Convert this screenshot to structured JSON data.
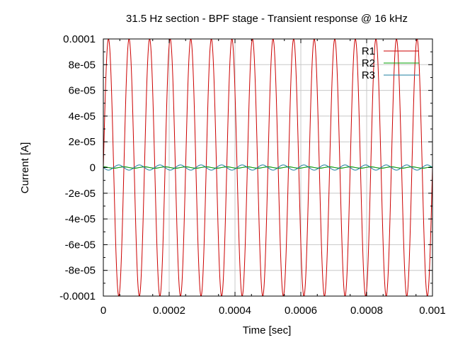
{
  "chart_data": {
    "type": "line",
    "title": "31.5 Hz section - BPF stage - Transient response @ 16 kHz",
    "xlabel": "Time [sec]",
    "ylabel": "Current [A]",
    "xlim": [
      0,
      0.001
    ],
    "ylim": [
      -0.0001,
      0.0001
    ],
    "x_ticks": [
      "0",
      "0.0002",
      "0.0004",
      "0.0006",
      "0.0008",
      "0.001"
    ],
    "y_ticks": [
      "0.0001",
      "8e-05",
      "6e-05",
      "4e-05",
      "2e-05",
      "0",
      "-2e-05",
      "-4e-05",
      "-6e-05",
      "-8e-05",
      "-0.0001"
    ],
    "grid": true,
    "legend_position": "top-right",
    "frequency_hz": 16000,
    "series": [
      {
        "name": "R1",
        "color": "#cc0000",
        "amplitude": 0.0001,
        "phase_deg": 0
      },
      {
        "name": "R2",
        "color": "#00a000",
        "amplitude": 6e-07,
        "phase_deg": 90
      },
      {
        "name": "R3",
        "color": "#1e7fa0",
        "amplitude": 2e-06,
        "phase_deg": 180
      }
    ]
  }
}
